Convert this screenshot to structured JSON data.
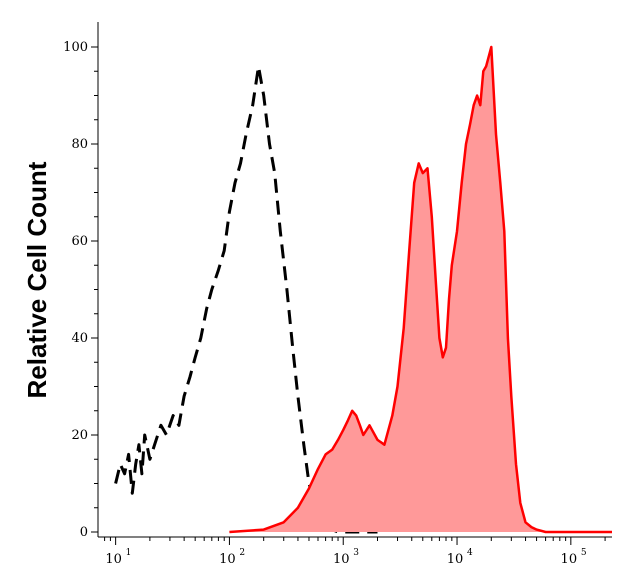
{
  "chart_data": {
    "type": "area",
    "title": "",
    "xlabel": "",
    "ylabel": "Relative Cell Count",
    "x_scale": "log",
    "xlim": [
      7,
      230000
    ],
    "ylim": [
      0,
      100
    ],
    "x_ticks": [
      {
        "value": 10,
        "base": "10",
        "exp": "1"
      },
      {
        "value": 100,
        "base": "10",
        "exp": "2"
      },
      {
        "value": 1000,
        "base": "10",
        "exp": "3"
      },
      {
        "value": 10000,
        "base": "10",
        "exp": "4"
      },
      {
        "value": 100000,
        "base": "10",
        "exp": "5"
      }
    ],
    "y_ticks": [
      {
        "value": 0,
        "label": "0"
      },
      {
        "value": 20,
        "label": "20"
      },
      {
        "value": 40,
        "label": "40"
      },
      {
        "value": 60,
        "label": "60"
      },
      {
        "value": 80,
        "label": "80"
      },
      {
        "value": 100,
        "label": "100"
      }
    ],
    "grid": false,
    "legend": "none",
    "series": [
      {
        "style": "dashed-line",
        "color": "#000000",
        "x": [
          10,
          11,
          12,
          13,
          14,
          15,
          16,
          17,
          18,
          20,
          22,
          25,
          28,
          32,
          36,
          40,
          45,
          50,
          56,
          63,
          70,
          80,
          90,
          100,
          112,
          125,
          140,
          160,
          180,
          200,
          225,
          250,
          280,
          320,
          360,
          400,
          450,
          500,
          560,
          630,
          700,
          800,
          900,
          1000,
          1200,
          1500,
          2000
        ],
        "values": [
          10,
          14,
          12,
          16,
          8,
          14,
          18,
          12,
          20,
          15,
          18,
          22,
          20,
          24,
          22,
          28,
          32,
          36,
          40,
          46,
          50,
          54,
          58,
          66,
          72,
          76,
          82,
          88,
          96,
          90,
          80,
          74,
          62,
          50,
          38,
          28,
          18,
          10,
          6,
          3,
          1,
          0.5,
          0,
          0,
          0,
          0,
          0
        ]
      },
      {
        "style": "filled-area",
        "color": "#ff0000",
        "fill": "#ff9999",
        "x": [
          100,
          200,
          300,
          400,
          500,
          600,
          700,
          800,
          900,
          1000,
          1100,
          1200,
          1300,
          1400,
          1500,
          1700,
          2000,
          2300,
          2700,
          3000,
          3400,
          3800,
          4200,
          4600,
          5000,
          5500,
          6000,
          6500,
          7000,
          7500,
          8000,
          8500,
          9000,
          10000,
          11000,
          12000,
          13000,
          14000,
          15000,
          16000,
          17000,
          18000,
          20000,
          22000,
          24000,
          26000,
          28000,
          30000,
          33000,
          36000,
          40000,
          45000,
          50000,
          60000,
          80000,
          100000,
          150000,
          230000
        ],
        "values": [
          0,
          0.5,
          2,
          5,
          9,
          13,
          16,
          17,
          19,
          21,
          23,
          25,
          24,
          22,
          20,
          22,
          19,
          18,
          24,
          30,
          42,
          58,
          72,
          76,
          74,
          75,
          65,
          52,
          40,
          36,
          38,
          48,
          55,
          62,
          72,
          80,
          84,
          88,
          90,
          88,
          95,
          96,
          100,
          82,
          72,
          62,
          40,
          28,
          14,
          6,
          2,
          1,
          0.5,
          0,
          0,
          0,
          0,
          0
        ]
      }
    ]
  }
}
